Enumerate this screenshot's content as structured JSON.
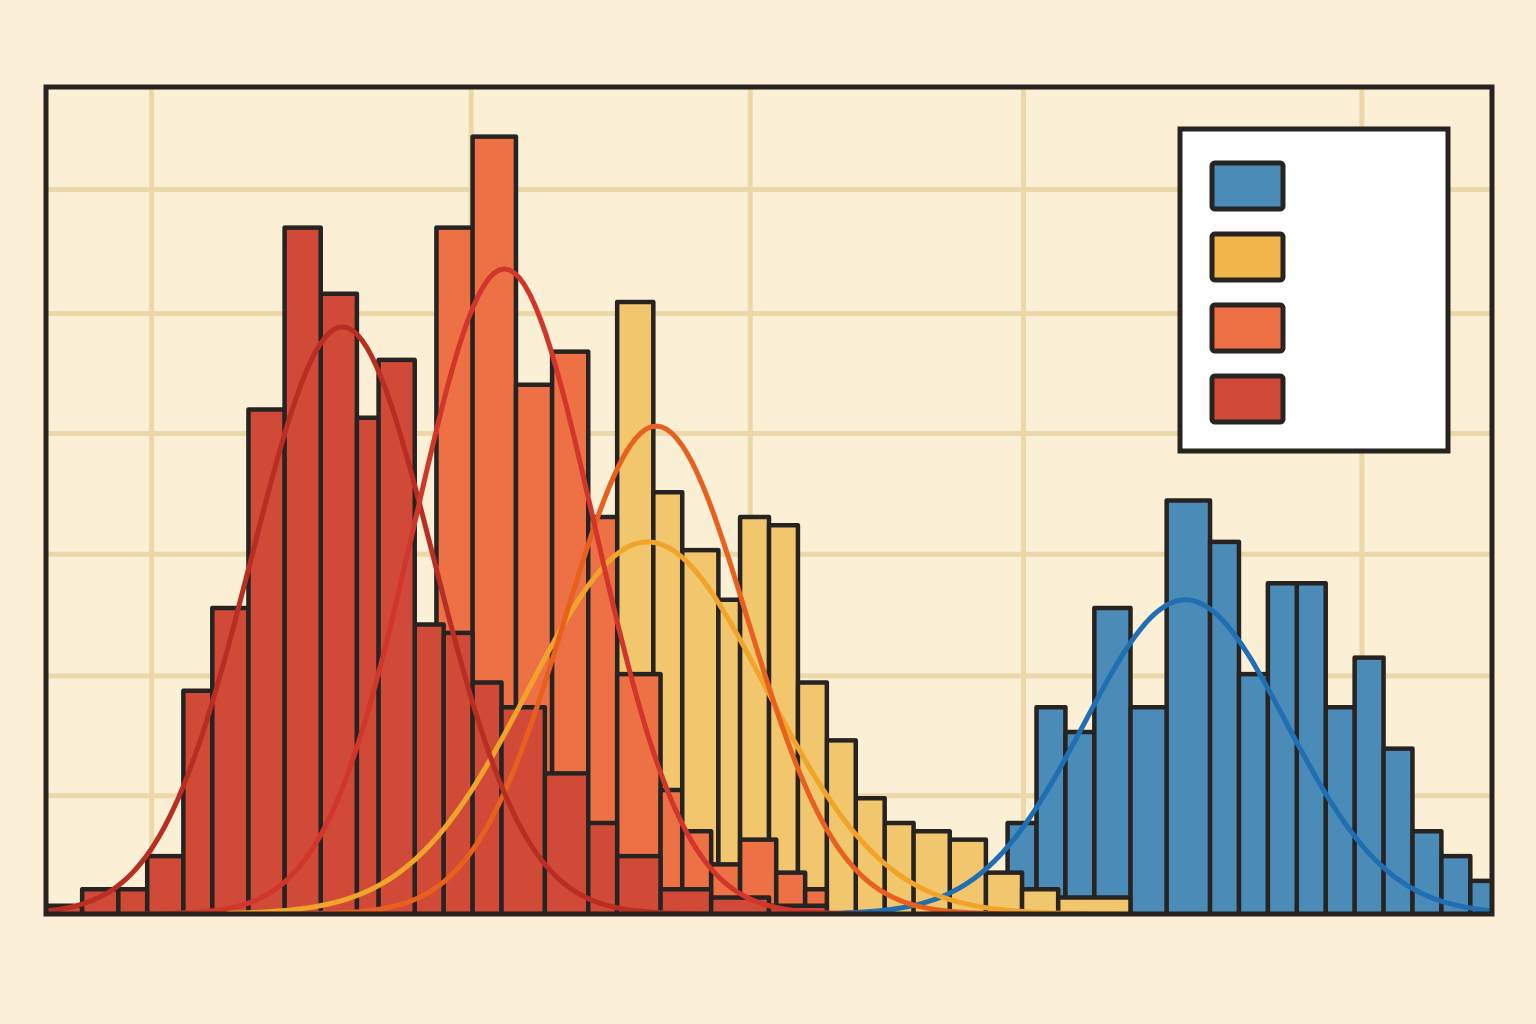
{
  "colors": {
    "background": "#fbefd7",
    "plot_background": "#fbefd5",
    "grid": "#ecd7a8",
    "outline": "#262321",
    "legend_background": "#ffffff"
  },
  "chart_data": {
    "type": "histogram",
    "title": "",
    "xlabel": "",
    "ylabel": "",
    "xlim": [
      0,
      100
    ],
    "ylim": [
      0,
      100
    ],
    "grid": true,
    "legend_placement": "top-right",
    "series": [
      {
        "name": "series-blue",
        "label": "",
        "color": "#4a8bb7",
        "curve_color": "#1f6fb2",
        "bins": [
          {
            "x0": 64.5,
            "x1": 66.5,
            "value": 3
          },
          {
            "x0": 66.5,
            "x1": 68.5,
            "value": 11
          },
          {
            "x0": 68.5,
            "x1": 70.5,
            "value": 25
          },
          {
            "x0": 70.5,
            "x1": 72.5,
            "value": 22
          },
          {
            "x0": 72.5,
            "x1": 75.0,
            "value": 37
          },
          {
            "x0": 75.0,
            "x1": 77.5,
            "value": 25
          },
          {
            "x0": 77.5,
            "x1": 80.5,
            "value": 50
          },
          {
            "x0": 80.5,
            "x1": 82.5,
            "value": 45
          },
          {
            "x0": 82.5,
            "x1": 84.5,
            "value": 29
          },
          {
            "x0": 84.5,
            "x1": 86.5,
            "value": 40
          },
          {
            "x0": 86.5,
            "x1": 88.5,
            "value": 40
          },
          {
            "x0": 88.5,
            "x1": 90.5,
            "value": 25
          },
          {
            "x0": 90.5,
            "x1": 92.5,
            "value": 31
          },
          {
            "x0": 92.5,
            "x1": 94.5,
            "value": 20
          },
          {
            "x0": 94.5,
            "x1": 96.5,
            "value": 10
          },
          {
            "x0": 96.5,
            "x1": 98.5,
            "value": 7
          },
          {
            "x0": 98.5,
            "x1": 100.0,
            "value": 4
          }
        ],
        "curve": {
          "mean": 78.8,
          "sd": 7.0,
          "peak": 38
        }
      },
      {
        "name": "series-yellow",
        "label": "",
        "color": "#f1c66c",
        "curve_color": "#f0a52a",
        "bins": [
          {
            "x0": 39.5,
            "x1": 42.0,
            "value": 74
          },
          {
            "x0": 42.0,
            "x1": 44.0,
            "value": 51
          },
          {
            "x0": 44.0,
            "x1": 46.5,
            "value": 44
          },
          {
            "x0": 46.5,
            "x1": 48.0,
            "value": 38
          },
          {
            "x0": 48.0,
            "x1": 50.0,
            "value": 48
          },
          {
            "x0": 50.0,
            "x1": 52.0,
            "value": 47
          },
          {
            "x0": 52.0,
            "x1": 54.0,
            "value": 28
          },
          {
            "x0": 54.0,
            "x1": 56.0,
            "value": 21
          },
          {
            "x0": 56.0,
            "x1": 58.0,
            "value": 14
          },
          {
            "x0": 58.0,
            "x1": 60.0,
            "value": 11
          },
          {
            "x0": 60.0,
            "x1": 62.5,
            "value": 10
          },
          {
            "x0": 62.5,
            "x1": 65.0,
            "value": 9
          },
          {
            "x0": 65.0,
            "x1": 67.5,
            "value": 5
          },
          {
            "x0": 67.5,
            "x1": 70.0,
            "value": 3
          },
          {
            "x0": 70.0,
            "x1": 75.0,
            "value": 2
          }
        ],
        "curve": {
          "mean": 41.6,
          "sd": 8.2,
          "peak": 45
        }
      },
      {
        "name": "series-orange",
        "label": "",
        "color": "#ee7045",
        "curve_color": "#e7601e",
        "bins": [
          {
            "x0": 19.5,
            "x1": 22.0,
            "value": 3
          },
          {
            "x0": 22.0,
            "x1": 24.5,
            "value": 5
          },
          {
            "x0": 24.5,
            "x1": 27.0,
            "value": 12
          },
          {
            "x0": 27.0,
            "x1": 29.5,
            "value": 83
          },
          {
            "x0": 29.5,
            "x1": 32.5,
            "value": 94
          },
          {
            "x0": 32.5,
            "x1": 35.0,
            "value": 64
          },
          {
            "x0": 35.0,
            "x1": 37.5,
            "value": 68
          },
          {
            "x0": 37.5,
            "x1": 39.5,
            "value": 48
          },
          {
            "x0": 39.5,
            "x1": 42.5,
            "value": 29
          },
          {
            "x0": 42.5,
            "x1": 44.0,
            "value": 15
          },
          {
            "x0": 44.0,
            "x1": 46.0,
            "value": 10
          },
          {
            "x0": 46.0,
            "x1": 48.0,
            "value": 6
          },
          {
            "x0": 48.0,
            "x1": 50.5,
            "value": 9
          },
          {
            "x0": 50.5,
            "x1": 52.5,
            "value": 5
          },
          {
            "x0": 52.5,
            "x1": 54.0,
            "value": 3
          }
        ],
        "curve": {
          "mean": 42.2,
          "sd": 6.3,
          "peak": 59
        }
      },
      {
        "name": "series-red",
        "label": "",
        "color": "#d04a37",
        "curve_color": "#b92e22",
        "bins": [
          {
            "x0": 0.0,
            "x1": 2.5,
            "value": 1
          },
          {
            "x0": 2.5,
            "x1": 5.0,
            "value": 3
          },
          {
            "x0": 5.0,
            "x1": 7.0,
            "value": 3
          },
          {
            "x0": 7.0,
            "x1": 9.5,
            "value": 7
          },
          {
            "x0": 9.5,
            "x1": 11.5,
            "value": 27
          },
          {
            "x0": 11.5,
            "x1": 14.0,
            "value": 37
          },
          {
            "x0": 14.0,
            "x1": 16.5,
            "value": 61
          },
          {
            "x0": 16.5,
            "x1": 19.0,
            "value": 83
          },
          {
            "x0": 19.0,
            "x1": 21.5,
            "value": 75
          },
          {
            "x0": 21.5,
            "x1": 23.0,
            "value": 60
          },
          {
            "x0": 23.0,
            "x1": 25.5,
            "value": 67
          },
          {
            "x0": 25.5,
            "x1": 27.5,
            "value": 35
          },
          {
            "x0": 27.5,
            "x1": 29.5,
            "value": 34
          },
          {
            "x0": 29.5,
            "x1": 31.5,
            "value": 28
          },
          {
            "x0": 31.5,
            "x1": 34.5,
            "value": 25
          },
          {
            "x0": 34.5,
            "x1": 37.5,
            "value": 17
          },
          {
            "x0": 37.5,
            "x1": 39.5,
            "value": 11
          },
          {
            "x0": 39.5,
            "x1": 42.5,
            "value": 7
          },
          {
            "x0": 42.5,
            "x1": 46.0,
            "value": 3
          },
          {
            "x0": 46.0,
            "x1": 50.0,
            "value": 2
          },
          {
            "x0": 50.0,
            "x1": 54.0,
            "value": 1
          }
        ],
        "curve": {
          "mean": 20.5,
          "sd": 6.3,
          "peak": 71
        }
      }
    ],
    "extra_curves": [
      {
        "name": "curve-red-secondary",
        "color": "#d0362a",
        "mean": 31.7,
        "sd": 6.2,
        "peak": 78
      }
    ],
    "legend": [
      {
        "series": "series-blue",
        "label": "",
        "color": "#4a8bb7"
      },
      {
        "series": "series-yellow",
        "label": "",
        "color": "#f1b64b"
      },
      {
        "series": "series-orange",
        "label": "",
        "color": "#ee7045"
      },
      {
        "series": "series-red",
        "label": "",
        "color": "#d04a37"
      }
    ]
  }
}
